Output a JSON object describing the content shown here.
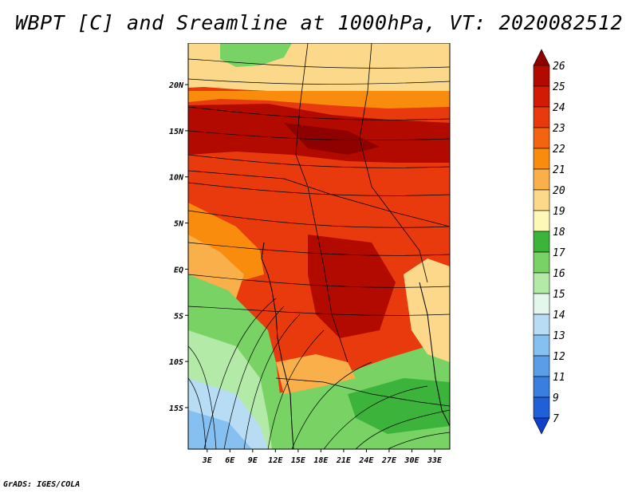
{
  "title": "WBPT [C] and Sreamline at 1000hPa, VT: 2020082512",
  "footer": "GrADS: IGES/COLA",
  "chart_data": {
    "type": "map",
    "variable": "WBPT [C]",
    "overlay": "streamlines",
    "level": "1000hPa",
    "valid_time": "2020082512",
    "lat_ticks": [
      "20N",
      "15N",
      "10N",
      "5N",
      "EQ",
      "5S",
      "10S",
      "15S"
    ],
    "lat_values": [
      20,
      15,
      10,
      5,
      0,
      -5,
      -10,
      -15
    ],
    "lon_ticks": [
      "3E",
      "6E",
      "9E",
      "12E",
      "15E",
      "18E",
      "21E",
      "24E",
      "27E",
      "30E",
      "33E"
    ],
    "lon_values": [
      3,
      6,
      9,
      12,
      15,
      18,
      21,
      24,
      27,
      30,
      33
    ],
    "lon_range": [
      0.5,
      35
    ],
    "lat_range": [
      -19.5,
      24.5
    ],
    "colorbar": {
      "levels": [
        "26",
        "25",
        "24",
        "23",
        "22",
        "21",
        "20",
        "19",
        "18",
        "17",
        "16",
        "15",
        "14",
        "13",
        "12",
        "11",
        "9",
        "7"
      ],
      "colors": [
        "#8f0000",
        "#b30a00",
        "#d21a05",
        "#e83a0c",
        "#f4640f",
        "#f98c0d",
        "#fab04a",
        "#fbd88a",
        "#fdf7b8",
        "#3cb43c",
        "#78d264",
        "#b4eaa8",
        "#e4f7ec",
        "#b8dcf4",
        "#86c0f0",
        "#5a9ee8",
        "#3a7fe0",
        "#1f5fd8",
        "#1040c8"
      ]
    }
  }
}
